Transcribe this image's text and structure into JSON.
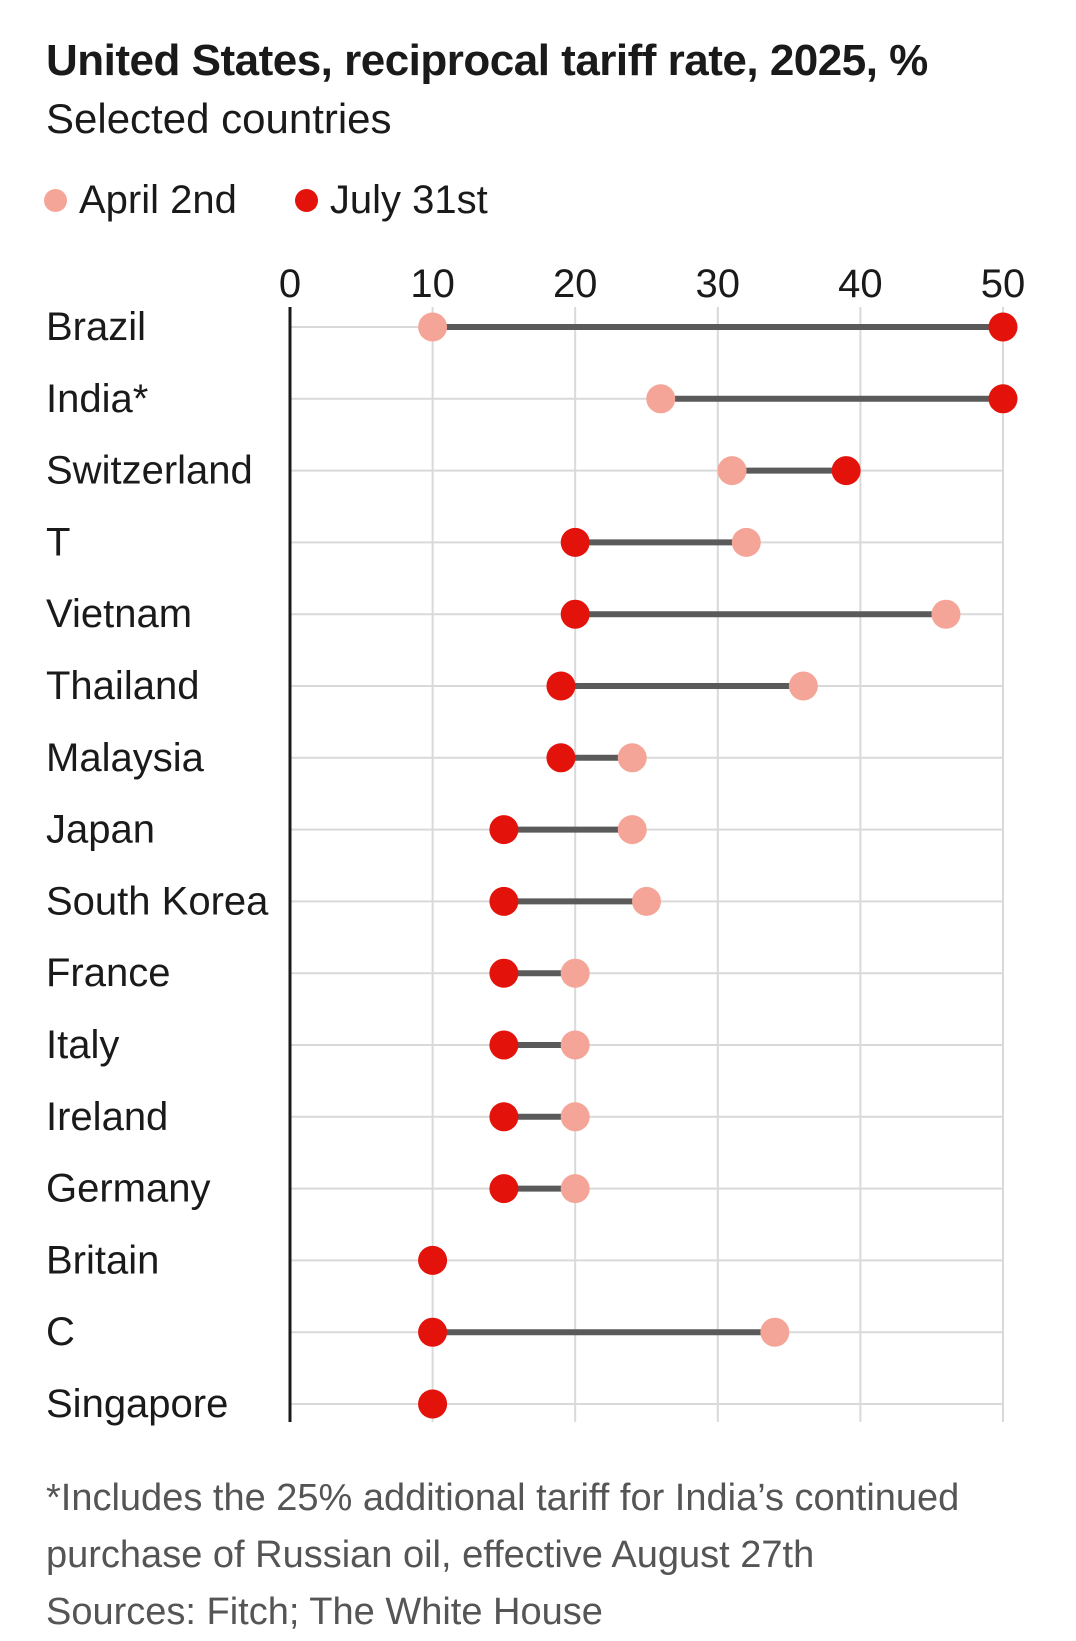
{
  "header": {
    "title": "United States, reciprocal tariff rate, 2025, %",
    "subtitle": "Selected countries"
  },
  "legend": [
    {
      "label": "April 2nd",
      "color": "#f4a598"
    },
    {
      "label": "July 31st",
      "color": "#e3120b"
    }
  ],
  "colors": {
    "april": "#f4a598",
    "july": "#e3120b",
    "connector": "#5a5a5a",
    "grid": "#d9d9d9",
    "axis": "#1a1a1a"
  },
  "chart_data": {
    "type": "dot-range",
    "xlim": [
      0,
      50
    ],
    "ticks": [
      0,
      10,
      20,
      30,
      40,
      50
    ],
    "xaxis_position": "top",
    "grid": true,
    "legend_position": "top-left",
    "categories": [
      "Brazil",
      "India*",
      "Switzerland",
      "T",
      "Vietnam",
      "Thailand",
      "Malaysia",
      "Japan",
      "South Korea",
      "France",
      "Italy",
      "Ireland",
      "Germany",
      "Britain",
      "C",
      "Singapore"
    ],
    "series": [
      {
        "name": "April 2nd",
        "values": [
          10,
          26,
          31,
          32,
          46,
          36,
          24,
          24,
          25,
          20,
          20,
          20,
          20,
          10,
          34,
          10
        ]
      },
      {
        "name": "July 31st",
        "values": [
          50,
          50,
          39,
          20,
          20,
          19,
          19,
          15,
          15,
          15,
          15,
          15,
          15,
          10,
          10,
          10
        ]
      }
    ]
  },
  "footnotes": {
    "note_line1": "*Includes the 25% additional tariff for India’s continued",
    "note_line2": "purchase of Russian oil, effective August 27th",
    "sources": "Sources: Fitch; The White House"
  }
}
